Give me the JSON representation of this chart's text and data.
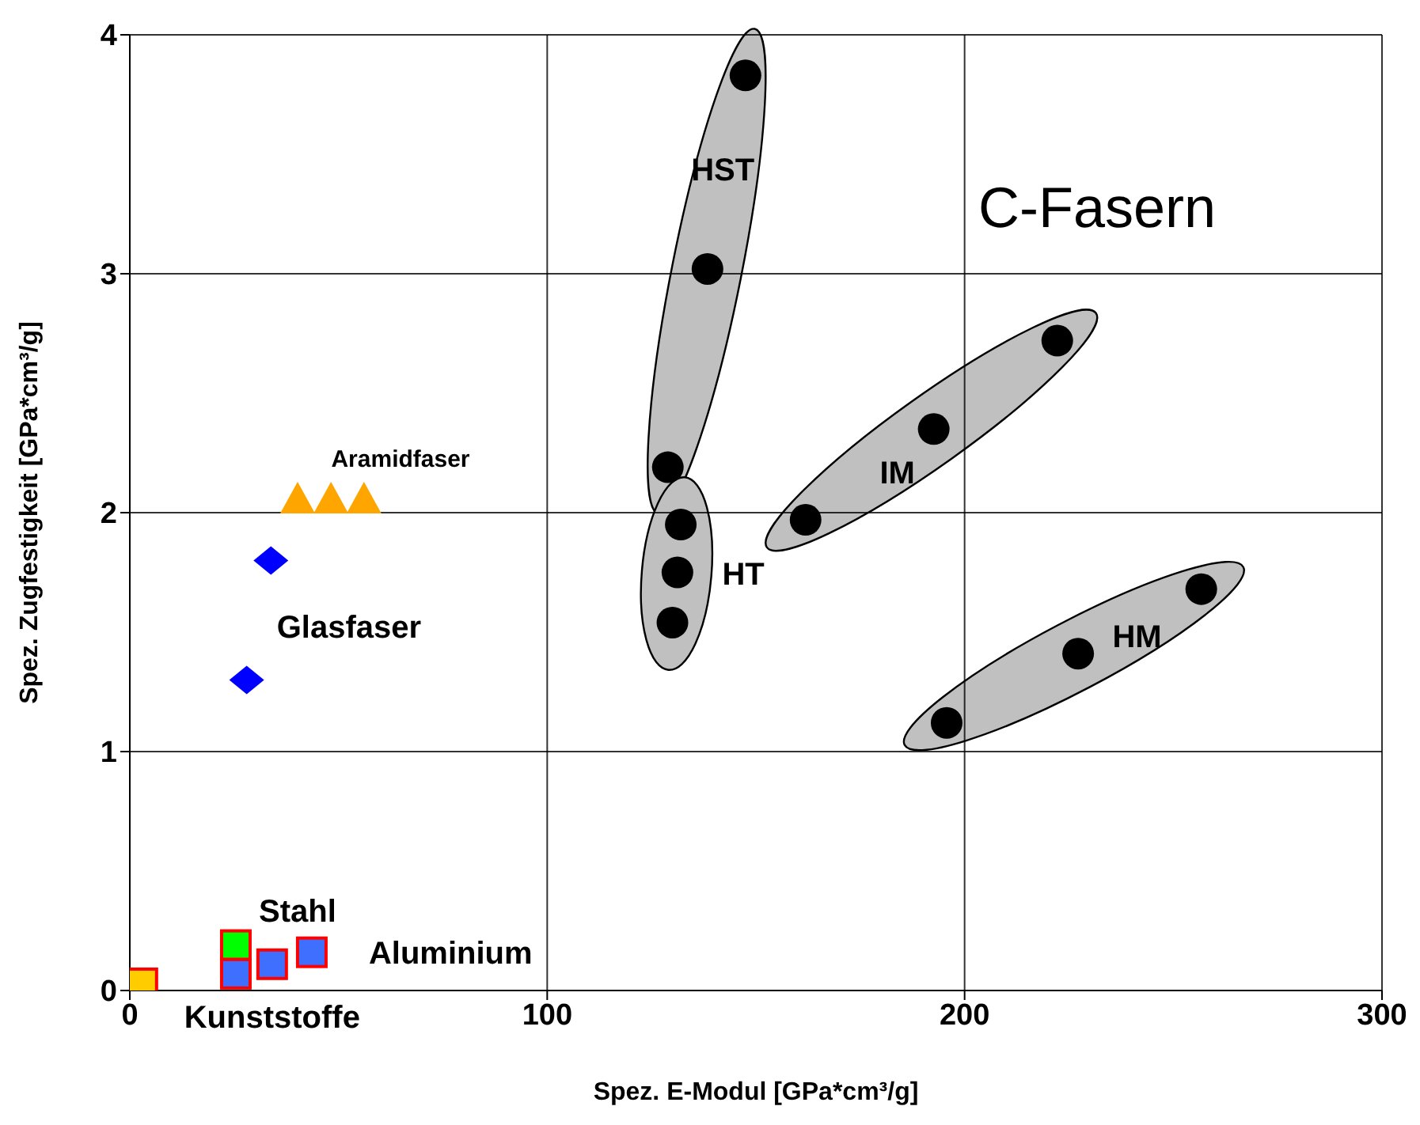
{
  "chart_data": {
    "type": "scatter",
    "xlabel": "Spez. E-Modul [GPa*cm³/g]",
    "ylabel": "Spez. Zugfestigkeit [GPa*cm³/g]",
    "xlim": [
      0,
      300
    ],
    "xticks": [
      0,
      100,
      200,
      300
    ],
    "ylim": [
      0,
      4
    ],
    "yticks": [
      0,
      1,
      2,
      3,
      4
    ],
    "grid": true,
    "legend": false,
    "annotations": [
      "C-Fasern"
    ],
    "series": [
      {
        "name": "HST",
        "color": "#000000",
        "marker": "circle",
        "x": [
          147.5,
          138.4,
          128.9
        ],
        "values": [
          3.83,
          3.02,
          2.19
        ]
      },
      {
        "name": "HT",
        "color": "#000000",
        "marker": "circle",
        "x": [
          132,
          131.2,
          130
        ],
        "values": [
          1.95,
          1.75,
          1.54
        ]
      },
      {
        "name": "IM",
        "color": "#000000",
        "marker": "circle",
        "x": [
          161.9,
          192.6,
          222.2
        ],
        "values": [
          1.97,
          2.35,
          2.72
        ]
      },
      {
        "name": "HM",
        "color": "#000000",
        "marker": "circle",
        "x": [
          195.7,
          227.2,
          256.7
        ],
        "values": [
          1.12,
          1.41,
          1.68
        ]
      },
      {
        "name": "Glasfaser",
        "color": "#0000ff",
        "marker": "diamond",
        "x": [
          33.8,
          28
        ],
        "values": [
          1.8,
          1.3
        ]
      },
      {
        "name": "Aramidfaser",
        "color": "#ffa500",
        "marker": "triangle",
        "x": [
          40.2,
          48.2,
          56.1
        ],
        "values": [
          2.05,
          2.05,
          2.05
        ]
      },
      {
        "name": "Stahl",
        "color": "#00ff00",
        "marker": "square",
        "x": [
          25.4
        ],
        "values": [
          0.19
        ]
      },
      {
        "name": "Aluminium",
        "color": "#3f6fff",
        "marker": "square",
        "x": [
          25.4,
          34.1,
          43.6
        ],
        "values": [
          0.07,
          0.11,
          0.16
        ]
      },
      {
        "name": "Kunststoffe",
        "color": "#ffcc00",
        "marker": "square",
        "x": [
          3
        ],
        "values": [
          0.03
        ]
      }
    ]
  }
}
